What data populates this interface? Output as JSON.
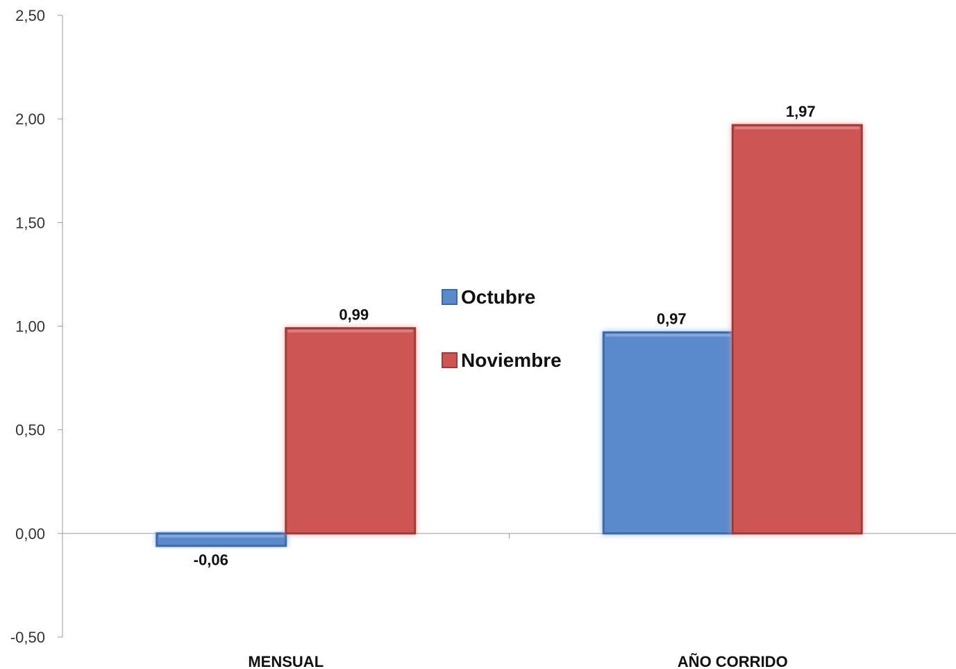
{
  "chart_data": {
    "type": "bar",
    "categories": [
      "MENSUAL",
      "AÑO CORRIDO"
    ],
    "series": [
      {
        "name": "Octubre",
        "values": [
          -0.06,
          0.97
        ],
        "color": "#5a8acb"
      },
      {
        "name": "Noviembre",
        "values": [
          0.99,
          1.97
        ],
        "color": "#cd5654"
      }
    ],
    "data_labels": [
      [
        "-0,06",
        "0,97"
      ],
      [
        "0,99",
        "1,97"
      ]
    ],
    "ylim": [
      -0.5,
      2.5
    ],
    "yticks": [
      -0.5,
      0.0,
      0.5,
      1.0,
      1.5,
      2.0,
      2.5
    ],
    "ytick_labels": [
      "-0,50",
      "0,00",
      "0,50",
      "1,00",
      "1,50",
      "2,00",
      "2,50"
    ],
    "grid": false,
    "legend_position": "center"
  }
}
